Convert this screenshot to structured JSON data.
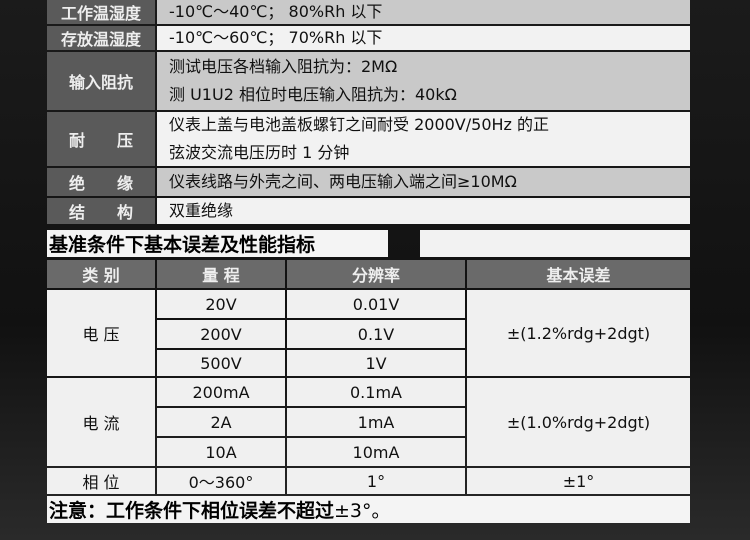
{
  "specs": [
    {
      "label": "工作温湿度",
      "lines": [
        "-10℃～40℃； 80%Rh 以下"
      ]
    },
    {
      "label": "存放温湿度",
      "lines": [
        "-10℃～60℃； 70%Rh 以下"
      ]
    },
    {
      "label": "输入阻抗",
      "lines": [
        "测试电压各档输入阻抗为：2MΩ",
        "测 U1U2 相位时电压输入阻抗为：40kΩ"
      ]
    },
    {
      "label": "耐　　压",
      "lines": [
        "仪表上盖与电池盖板螺钉之间耐受 2000V/50Hz 的正",
        "弦波交流电压历时 1 分钟"
      ]
    },
    {
      "label": "绝　　缘",
      "lines": [
        "仪表线路与外壳之间、两电压输入端之间≥10MΩ"
      ]
    },
    {
      "label": "结　　构",
      "lines": [
        "双重绝缘"
      ]
    }
  ],
  "section_title": "基准条件下基本误差及性能指标",
  "table": {
    "headers": [
      "类 别",
      "量 程",
      "分辨率",
      "基本误差"
    ],
    "groups": [
      {
        "category": "电 压",
        "ranges": [
          "20V",
          "200V",
          "500V"
        ],
        "resolutions": [
          "0.01V",
          "0.1V",
          "1V"
        ],
        "error": "±(1.2%rdg+2dgt)"
      },
      {
        "category": "电 流",
        "ranges": [
          "200mA",
          "2A",
          "10A"
        ],
        "resolutions": [
          "0.1mA",
          "1mA",
          "10mA"
        ],
        "error": "±(1.0%rdg+2dgt)"
      },
      {
        "category": "相 位",
        "ranges": [
          "0～360°"
        ],
        "resolutions": [
          "1°"
        ],
        "error": "±1°"
      }
    ]
  },
  "note": {
    "bold": "注意：工作条件下相位误差不超过",
    "rest": "±3°。"
  }
}
